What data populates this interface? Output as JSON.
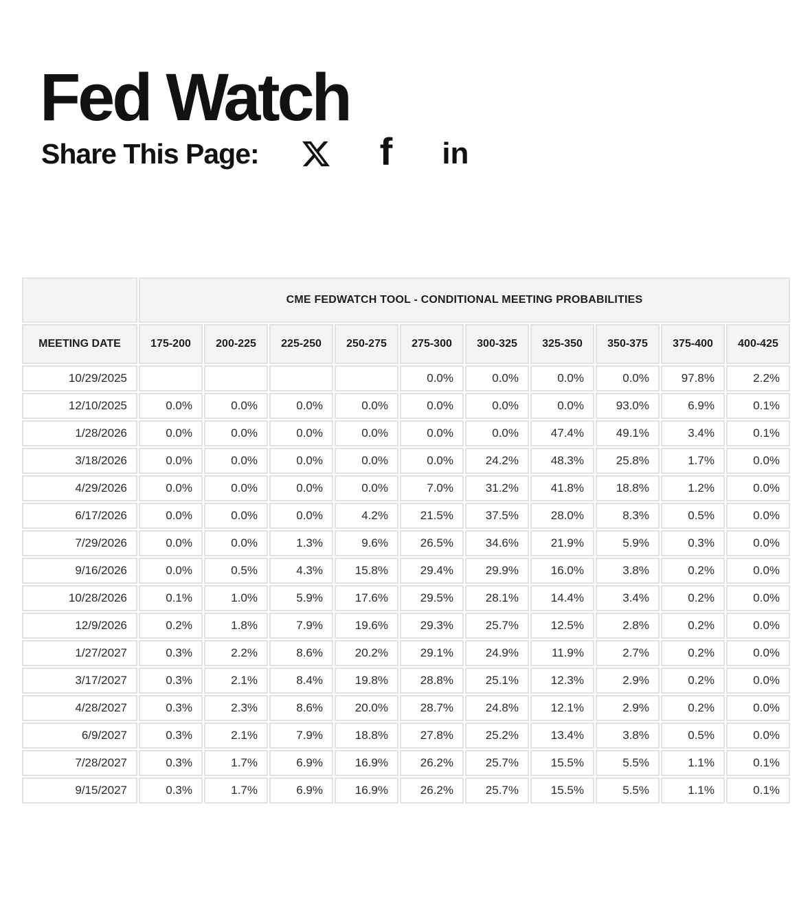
{
  "page": {
    "title": "Fed Watch"
  },
  "share": {
    "label": "Share This Page:",
    "icons": [
      {
        "name": "x-icon",
        "glyph": "X"
      },
      {
        "name": "facebook-icon",
        "glyph": "f"
      },
      {
        "name": "linkedin-icon",
        "glyph": "in"
      }
    ]
  },
  "colors": {
    "cyan_highlight": "#b7edf4",
    "cyan_border": "#d2f2f7",
    "yellow_highlight": "#f6f6d7",
    "yellow_border": "#f9f9e6",
    "header_bg": "#f4f4f4",
    "cell_border": "#e2e2e2",
    "text": "#2b2b2b"
  },
  "table": {
    "title": "CME FEDWATCH TOOL - CONDITIONAL MEETING PROBABILITIES",
    "date_header": "MEETING DATE",
    "rate_headers": [
      "175-200",
      "200-225",
      "225-250",
      "250-275",
      "275-300",
      "300-325",
      "325-350",
      "350-375",
      "375-400",
      "400-425"
    ],
    "rows": [
      {
        "date": "10/29/2025",
        "values": [
          "",
          "",
          "",
          "",
          "0.0%",
          "0.0%",
          "0.0%",
          "0.0%",
          "97.8%",
          "2.2%"
        ],
        "styles": [
          "",
          "",
          "",
          "",
          "",
          "",
          "",
          "",
          "c",
          "y"
        ]
      },
      {
        "date": "12/10/2025",
        "values": [
          "0.0%",
          "0.0%",
          "0.0%",
          "0.0%",
          "0.0%",
          "0.0%",
          "0.0%",
          "93.0%",
          "6.9%",
          "0.1%"
        ],
        "styles": [
          "",
          "",
          "",
          "",
          "",
          "",
          "",
          "c",
          "y",
          "y"
        ]
      },
      {
        "date": "1/28/2026",
        "values": [
          "0.0%",
          "0.0%",
          "0.0%",
          "0.0%",
          "0.0%",
          "0.0%",
          "47.4%",
          "49.1%",
          "3.4%",
          "0.1%"
        ],
        "styles": [
          "",
          "",
          "",
          "",
          "",
          "",
          "",
          "c",
          "y",
          "y"
        ]
      },
      {
        "date": "3/18/2026",
        "values": [
          "0.0%",
          "0.0%",
          "0.0%",
          "0.0%",
          "0.0%",
          "24.2%",
          "48.3%",
          "25.8%",
          "1.7%",
          "0.0%"
        ],
        "styles": [
          "",
          "",
          "",
          "",
          "",
          "",
          "c",
          "y",
          "y",
          "y"
        ]
      },
      {
        "date": "4/29/2026",
        "values": [
          "0.0%",
          "0.0%",
          "0.0%",
          "0.0%",
          "7.0%",
          "31.2%",
          "41.8%",
          "18.8%",
          "1.2%",
          "0.0%"
        ],
        "styles": [
          "",
          "",
          "",
          "",
          "",
          "",
          "c",
          "y",
          "y",
          "y"
        ]
      },
      {
        "date": "6/17/2026",
        "values": [
          "0.0%",
          "0.0%",
          "0.0%",
          "4.2%",
          "21.5%",
          "37.5%",
          "28.0%",
          "8.3%",
          "0.5%",
          "0.0%"
        ],
        "styles": [
          "",
          "",
          "",
          "",
          "",
          "c",
          "y",
          "y",
          "y",
          "y"
        ]
      },
      {
        "date": "7/29/2026",
        "values": [
          "0.0%",
          "0.0%",
          "1.3%",
          "9.6%",
          "26.5%",
          "34.6%",
          "21.9%",
          "5.9%",
          "0.3%",
          "0.0%"
        ],
        "styles": [
          "",
          "",
          "",
          "",
          "",
          "c",
          "y",
          "y",
          "y",
          "y"
        ]
      },
      {
        "date": "9/16/2026",
        "values": [
          "0.0%",
          "0.5%",
          "4.3%",
          "15.8%",
          "29.4%",
          "29.9%",
          "16.0%",
          "3.8%",
          "0.2%",
          "0.0%"
        ],
        "styles": [
          "",
          "",
          "",
          "",
          "",
          "c",
          "y",
          "y",
          "y",
          "y"
        ]
      },
      {
        "date": "10/28/2026",
        "values": [
          "0.1%",
          "1.0%",
          "5.9%",
          "17.6%",
          "29.5%",
          "28.1%",
          "14.4%",
          "3.4%",
          "0.2%",
          "0.0%"
        ],
        "styles": [
          "",
          "",
          "",
          "",
          "c",
          "y",
          "y",
          "y",
          "y",
          "y"
        ]
      },
      {
        "date": "12/9/2026",
        "values": [
          "0.2%",
          "1.8%",
          "7.9%",
          "19.6%",
          "29.3%",
          "25.7%",
          "12.5%",
          "2.8%",
          "0.2%",
          "0.0%"
        ],
        "styles": [
          "",
          "",
          "",
          "",
          "c",
          "y",
          "y",
          "y",
          "y",
          "y"
        ]
      },
      {
        "date": "1/27/2027",
        "values": [
          "0.3%",
          "2.2%",
          "8.6%",
          "20.2%",
          "29.1%",
          "24.9%",
          "11.9%",
          "2.7%",
          "0.2%",
          "0.0%"
        ],
        "styles": [
          "",
          "",
          "",
          "",
          "c",
          "y",
          "y",
          "y",
          "y",
          "y"
        ]
      },
      {
        "date": "3/17/2027",
        "values": [
          "0.3%",
          "2.1%",
          "8.4%",
          "19.8%",
          "28.8%",
          "25.1%",
          "12.3%",
          "2.9%",
          "0.2%",
          "0.0%"
        ],
        "styles": [
          "",
          "",
          "",
          "",
          "c",
          "y",
          "y",
          "y",
          "y",
          "y"
        ]
      },
      {
        "date": "4/28/2027",
        "values": [
          "0.3%",
          "2.3%",
          "8.6%",
          "20.0%",
          "28.7%",
          "24.8%",
          "12.1%",
          "2.9%",
          "0.2%",
          "0.0%"
        ],
        "styles": [
          "",
          "",
          "",
          "",
          "c",
          "y",
          "y",
          "y",
          "y",
          "y"
        ]
      },
      {
        "date": "6/9/2027",
        "values": [
          "0.3%",
          "2.1%",
          "7.9%",
          "18.8%",
          "27.8%",
          "25.2%",
          "13.4%",
          "3.8%",
          "0.5%",
          "0.0%"
        ],
        "styles": [
          "",
          "",
          "",
          "",
          "c",
          "y",
          "y",
          "y",
          "y",
          "y"
        ]
      },
      {
        "date": "7/28/2027",
        "values": [
          "0.3%",
          "1.7%",
          "6.9%",
          "16.9%",
          "26.2%",
          "25.7%",
          "15.5%",
          "5.5%",
          "1.1%",
          "0.1%"
        ],
        "styles": [
          "",
          "",
          "",
          "",
          "c",
          "y",
          "y",
          "y",
          "y",
          "y"
        ]
      },
      {
        "date": "9/15/2027",
        "values": [
          "0.3%",
          "1.7%",
          "6.9%",
          "16.9%",
          "26.2%",
          "25.7%",
          "15.5%",
          "5.5%",
          "1.1%",
          "0.1%"
        ],
        "styles": [
          "",
          "",
          "",
          "",
          "c",
          "y",
          "y",
          "y",
          "y",
          "y"
        ]
      }
    ]
  }
}
